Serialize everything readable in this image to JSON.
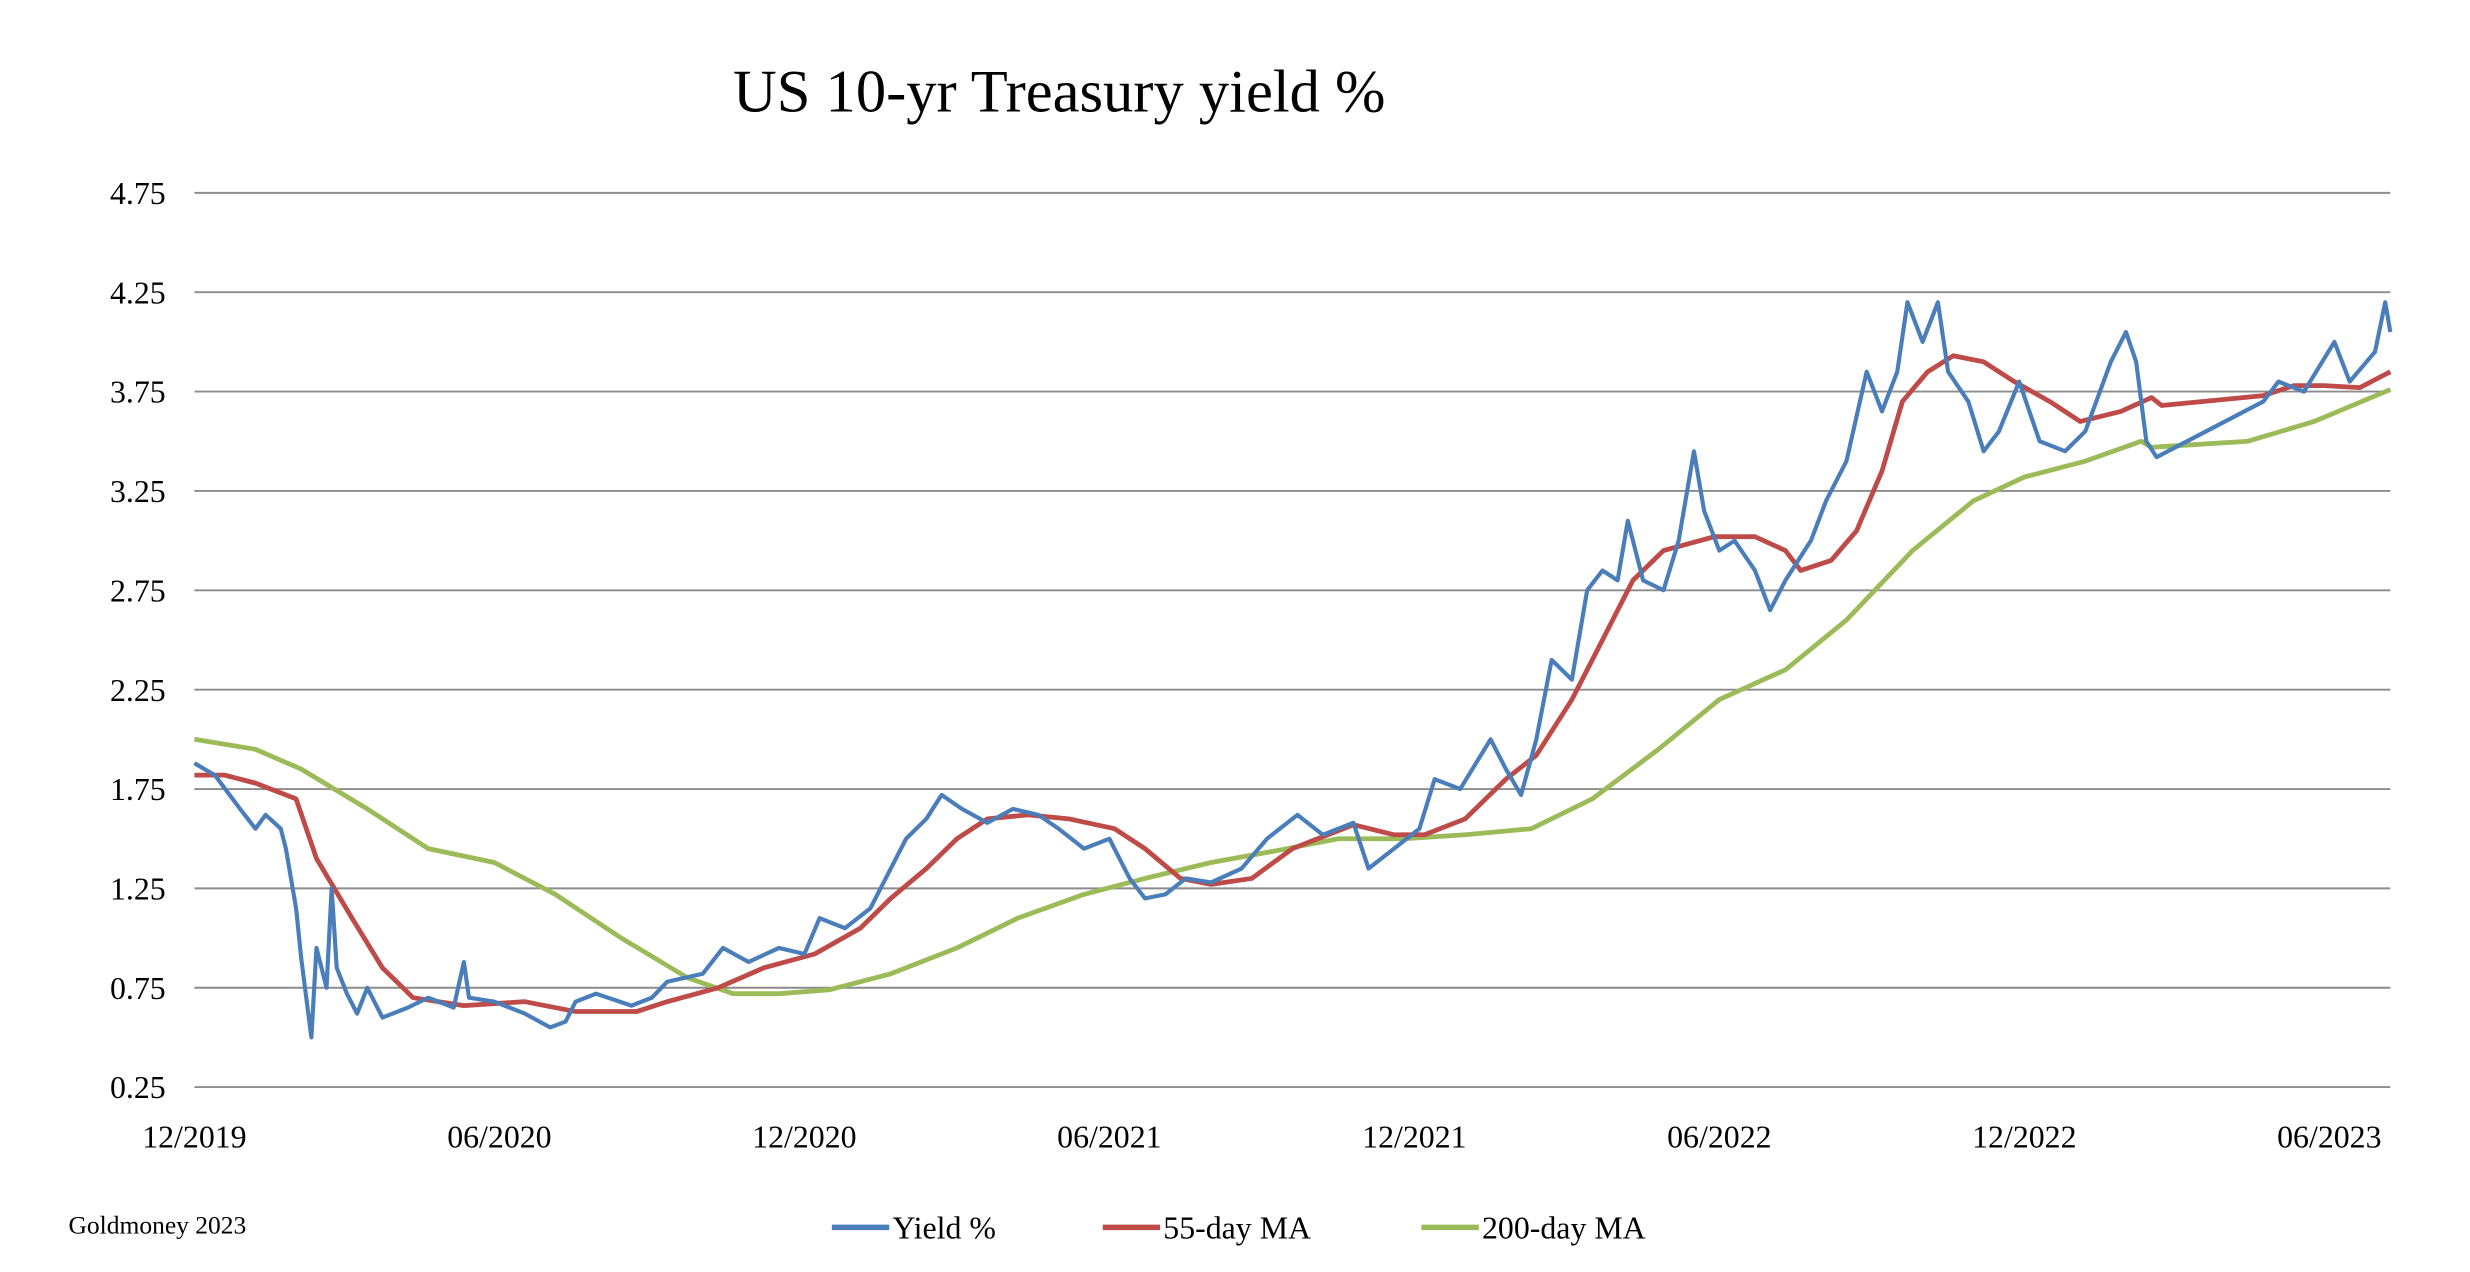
{
  "chart_data": {
    "type": "line",
    "title": "US 10-yr Treasury yield %",
    "source": "Goldmoney 2023",
    "xlabel": "",
    "ylabel": "",
    "x_unit": "months since 12/2019",
    "xlim": [
      0,
      43.2
    ],
    "ylim": [
      0.25,
      4.75
    ],
    "yticks": [
      "0.25",
      "0.75",
      "1.25",
      "1.75",
      "2.25",
      "2.75",
      "3.25",
      "3.75",
      "4.25",
      "4.75"
    ],
    "xticks": [
      {
        "label": "12/2019",
        "m": 0
      },
      {
        "label": "06/2020",
        "m": 6
      },
      {
        "label": "12/2020",
        "m": 12
      },
      {
        "label": "06/2021",
        "m": 18
      },
      {
        "label": "12/2021",
        "m": 24
      },
      {
        "label": "06/2022",
        "m": 30
      },
      {
        "label": "12/2022",
        "m": 36
      },
      {
        "label": "06/2023",
        "m": 42
      }
    ],
    "grid": true,
    "legend_position": "bottom",
    "series": [
      {
        "name": "Yield %",
        "color": "#4a7ebb",
        "points": [
          [
            0,
            1.88
          ],
          [
            0.4,
            1.82
          ],
          [
            0.9,
            1.65
          ],
          [
            1.2,
            1.55
          ],
          [
            1.4,
            1.62
          ],
          [
            1.7,
            1.55
          ],
          [
            1.8,
            1.45
          ],
          [
            2.0,
            1.15
          ],
          [
            2.1,
            0.9
          ],
          [
            2.3,
            0.5
          ],
          [
            2.4,
            0.95
          ],
          [
            2.6,
            0.75
          ],
          [
            2.7,
            1.25
          ],
          [
            2.8,
            0.85
          ],
          [
            3.0,
            0.72
          ],
          [
            3.2,
            0.62
          ],
          [
            3.4,
            0.75
          ],
          [
            3.7,
            0.6
          ],
          [
            4.2,
            0.65
          ],
          [
            4.6,
            0.7
          ],
          [
            5.1,
            0.65
          ],
          [
            5.3,
            0.88
          ],
          [
            5.4,
            0.7
          ],
          [
            5.9,
            0.68
          ],
          [
            6.5,
            0.62
          ],
          [
            7.0,
            0.55
          ],
          [
            7.3,
            0.58
          ],
          [
            7.5,
            0.68
          ],
          [
            7.9,
            0.72
          ],
          [
            8.6,
            0.66
          ],
          [
            9.0,
            0.7
          ],
          [
            9.3,
            0.78
          ],
          [
            10.0,
            0.82
          ],
          [
            10.4,
            0.95
          ],
          [
            10.9,
            0.88
          ],
          [
            11.5,
            0.95
          ],
          [
            12.0,
            0.92
          ],
          [
            12.3,
            1.1
          ],
          [
            12.8,
            1.05
          ],
          [
            13.3,
            1.15
          ],
          [
            13.6,
            1.3
          ],
          [
            14.0,
            1.5
          ],
          [
            14.4,
            1.6
          ],
          [
            14.7,
            1.72
          ],
          [
            15.1,
            1.65
          ],
          [
            15.6,
            1.58
          ],
          [
            16.1,
            1.65
          ],
          [
            16.6,
            1.62
          ],
          [
            17.0,
            1.55
          ],
          [
            17.5,
            1.45
          ],
          [
            18.0,
            1.5
          ],
          [
            18.4,
            1.3
          ],
          [
            18.7,
            1.2
          ],
          [
            19.1,
            1.22
          ],
          [
            19.5,
            1.3
          ],
          [
            20.0,
            1.28
          ],
          [
            20.6,
            1.35
          ],
          [
            21.1,
            1.5
          ],
          [
            21.7,
            1.62
          ],
          [
            22.2,
            1.52
          ],
          [
            22.8,
            1.58
          ],
          [
            23.1,
            1.35
          ],
          [
            23.6,
            1.45
          ],
          [
            24.1,
            1.55
          ],
          [
            24.4,
            1.8
          ],
          [
            24.9,
            1.75
          ],
          [
            25.5,
            2.0
          ],
          [
            25.8,
            1.85
          ],
          [
            26.1,
            1.72
          ],
          [
            26.4,
            2.0
          ],
          [
            26.7,
            2.4
          ],
          [
            27.1,
            2.3
          ],
          [
            27.4,
            2.75
          ],
          [
            27.7,
            2.85
          ],
          [
            28.0,
            2.8
          ],
          [
            28.2,
            3.1
          ],
          [
            28.5,
            2.8
          ],
          [
            28.9,
            2.75
          ],
          [
            29.2,
            3.0
          ],
          [
            29.5,
            3.45
          ],
          [
            29.7,
            3.15
          ],
          [
            30.0,
            2.95
          ],
          [
            30.3,
            3.0
          ],
          [
            30.7,
            2.85
          ],
          [
            31.0,
            2.65
          ],
          [
            31.3,
            2.8
          ],
          [
            31.8,
            3.0
          ],
          [
            32.1,
            3.2
          ],
          [
            32.5,
            3.4
          ],
          [
            32.9,
            3.85
          ],
          [
            33.2,
            3.65
          ],
          [
            33.5,
            3.85
          ],
          [
            33.7,
            4.2
          ],
          [
            34.0,
            4.0
          ],
          [
            34.3,
            4.2
          ],
          [
            34.5,
            3.85
          ],
          [
            34.9,
            3.7
          ],
          [
            35.2,
            3.45
          ],
          [
            35.5,
            3.55
          ],
          [
            35.9,
            3.8
          ],
          [
            36.3,
            3.5
          ],
          [
            36.8,
            3.45
          ],
          [
            37.2,
            3.55
          ],
          [
            37.7,
            3.9
          ],
          [
            38.0,
            4.05
          ],
          [
            38.2,
            3.9
          ],
          [
            38.4,
            3.5
          ],
          [
            38.6,
            3.42
          ],
          [
            40.7,
            3.7
          ],
          [
            41.0,
            3.8
          ],
          [
            41.5,
            3.75
          ],
          [
            42.1,
            4.0
          ],
          [
            42.4,
            3.8
          ],
          [
            42.9,
            3.95
          ],
          [
            43.1,
            4.2
          ],
          [
            43.2,
            4.05
          ]
        ]
      },
      {
        "name": "55-day MA",
        "color": "#be4b48",
        "points": [
          [
            0,
            1.82
          ],
          [
            0.6,
            1.82
          ],
          [
            1.2,
            1.78
          ],
          [
            2.0,
            1.7
          ],
          [
            2.4,
            1.4
          ],
          [
            3.1,
            1.1
          ],
          [
            3.7,
            0.85
          ],
          [
            4.3,
            0.7
          ],
          [
            5.3,
            0.66
          ],
          [
            6.5,
            0.68
          ],
          [
            7.5,
            0.63
          ],
          [
            8.7,
            0.63
          ],
          [
            9.3,
            0.68
          ],
          [
            10.3,
            0.75
          ],
          [
            11.2,
            0.85
          ],
          [
            12.2,
            0.92
          ],
          [
            13.1,
            1.05
          ],
          [
            13.7,
            1.2
          ],
          [
            14.4,
            1.35
          ],
          [
            15.0,
            1.5
          ],
          [
            15.6,
            1.6
          ],
          [
            16.4,
            1.62
          ],
          [
            17.2,
            1.6
          ],
          [
            18.1,
            1.55
          ],
          [
            18.7,
            1.45
          ],
          [
            19.4,
            1.3
          ],
          [
            20.0,
            1.27
          ],
          [
            20.8,
            1.3
          ],
          [
            21.6,
            1.45
          ],
          [
            22.8,
            1.57
          ],
          [
            23.6,
            1.52
          ],
          [
            24.2,
            1.52
          ],
          [
            25.0,
            1.6
          ],
          [
            25.8,
            1.8
          ],
          [
            26.4,
            1.92
          ],
          [
            27.1,
            2.2
          ],
          [
            27.7,
            2.5
          ],
          [
            28.3,
            2.8
          ],
          [
            28.9,
            2.95
          ],
          [
            29.9,
            3.02
          ],
          [
            30.7,
            3.02
          ],
          [
            31.3,
            2.95
          ],
          [
            31.6,
            2.85
          ],
          [
            32.2,
            2.9
          ],
          [
            32.7,
            3.05
          ],
          [
            33.2,
            3.35
          ],
          [
            33.6,
            3.7
          ],
          [
            34.1,
            3.85
          ],
          [
            34.6,
            3.93
          ],
          [
            35.2,
            3.9
          ],
          [
            35.8,
            3.8
          ],
          [
            36.5,
            3.7
          ],
          [
            37.1,
            3.6
          ],
          [
            37.9,
            3.65
          ],
          [
            38.5,
            3.72
          ],
          [
            38.7,
            3.68
          ],
          [
            40.7,
            3.73
          ],
          [
            41.3,
            3.78
          ],
          [
            41.9,
            3.78
          ],
          [
            42.6,
            3.77
          ],
          [
            43.2,
            3.85
          ]
        ]
      },
      {
        "name": "200-day MA",
        "color": "#9bbb59",
        "points": [
          [
            0,
            2.0
          ],
          [
            1.2,
            1.95
          ],
          [
            2.1,
            1.85
          ],
          [
            3.4,
            1.65
          ],
          [
            4.6,
            1.45
          ],
          [
            5.9,
            1.38
          ],
          [
            7.1,
            1.22
          ],
          [
            8.4,
            1.0
          ],
          [
            9.7,
            0.8
          ],
          [
            10.6,
            0.72
          ],
          [
            11.5,
            0.72
          ],
          [
            12.5,
            0.74
          ],
          [
            13.7,
            0.82
          ],
          [
            15.0,
            0.95
          ],
          [
            16.2,
            1.1
          ],
          [
            17.5,
            1.22
          ],
          [
            18.7,
            1.3
          ],
          [
            20.0,
            1.38
          ],
          [
            21.3,
            1.44
          ],
          [
            22.5,
            1.5
          ],
          [
            23.8,
            1.5
          ],
          [
            25.0,
            1.52
          ],
          [
            26.3,
            1.55
          ],
          [
            27.5,
            1.7
          ],
          [
            28.8,
            1.95
          ],
          [
            30.0,
            2.2
          ],
          [
            31.3,
            2.35
          ],
          [
            32.5,
            2.6
          ],
          [
            33.8,
            2.95
          ],
          [
            35.0,
            3.2
          ],
          [
            36.0,
            3.32
          ],
          [
            37.2,
            3.4
          ],
          [
            38.3,
            3.5
          ],
          [
            38.5,
            3.47
          ],
          [
            40.4,
            3.5
          ],
          [
            41.7,
            3.6
          ],
          [
            43.2,
            3.76
          ]
        ]
      }
    ]
  }
}
